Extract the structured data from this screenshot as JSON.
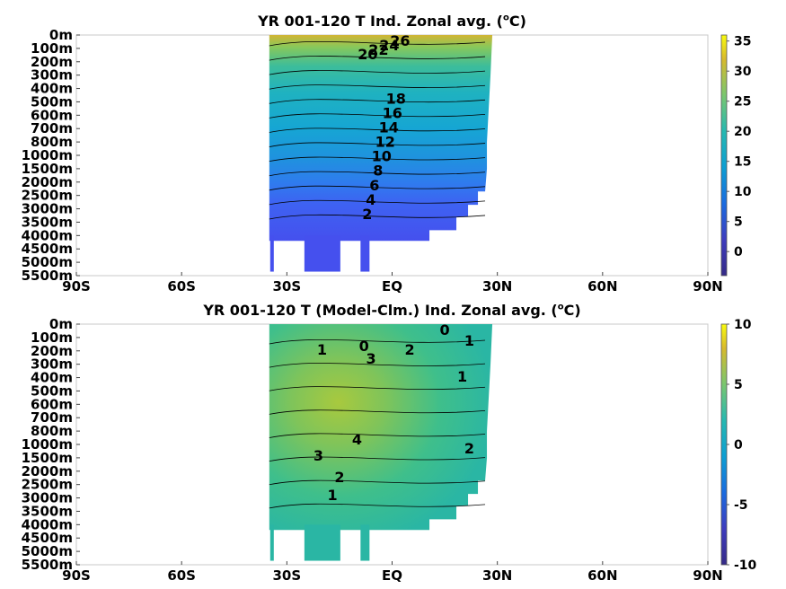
{
  "chart_data": [
    {
      "type": "heatmap",
      "title_main": "YR 001-120 T Ind. Zonal avg. (",
      "title_sup": "o",
      "title_end": "C)",
      "y_tick_labels": [
        "0m",
        "100m",
        "200m",
        "300m",
        "400m",
        "500m",
        "600m",
        "700m",
        "800m",
        "1000m",
        "1500m",
        "2000m",
        "2500m",
        "3000m",
        "3500m",
        "4000m",
        "4500m",
        "5000m",
        "5500m"
      ],
      "x_tick_labels": [
        "90S",
        "60S",
        "30S",
        "EQ",
        "30N",
        "60N",
        "90N"
      ],
      "xlim": [
        -90,
        90
      ],
      "colorbar": {
        "range": [
          -4,
          36
        ],
        "ticks": [
          "0",
          "5",
          "10",
          "15",
          "20",
          "25",
          "30",
          "35"
        ],
        "tick_values": [
          0,
          5,
          10,
          15,
          20,
          25,
          30,
          35
        ]
      },
      "contour_labels": [
        "26",
        "24",
        "22",
        "20",
        "18",
        "16",
        "14",
        "12",
        "10",
        "8",
        "6",
        "4",
        "2"
      ],
      "latitude_range": [
        -35,
        26
      ]
    },
    {
      "type": "heatmap",
      "title_main": "YR 001-120 T (Model-Clm.) Ind. Zonal avg. (",
      "title_sup": "o",
      "title_end": "C)",
      "y_tick_labels": [
        "0m",
        "100m",
        "200m",
        "300m",
        "400m",
        "500m",
        "600m",
        "700m",
        "800m",
        "1000m",
        "1500m",
        "2000m",
        "2500m",
        "3000m",
        "3500m",
        "4000m",
        "4500m",
        "5000m",
        "5500m"
      ],
      "x_tick_labels": [
        "90S",
        "60S",
        "30S",
        "EQ",
        "30N",
        "60N",
        "90N"
      ],
      "xlim": [
        -90,
        90
      ],
      "colorbar": {
        "range": [
          -10,
          10
        ],
        "ticks": [
          "10",
          "5",
          "0",
          "-5",
          "-10"
        ],
        "tick_values": [
          10,
          5,
          0,
          -5,
          -10
        ]
      },
      "contour_labels": [
        "1",
        "0",
        "3",
        "2",
        "0",
        "1",
        "1",
        "4",
        "3",
        "2",
        "2",
        "1"
      ],
      "latitude_range": [
        -35,
        26
      ]
    }
  ]
}
